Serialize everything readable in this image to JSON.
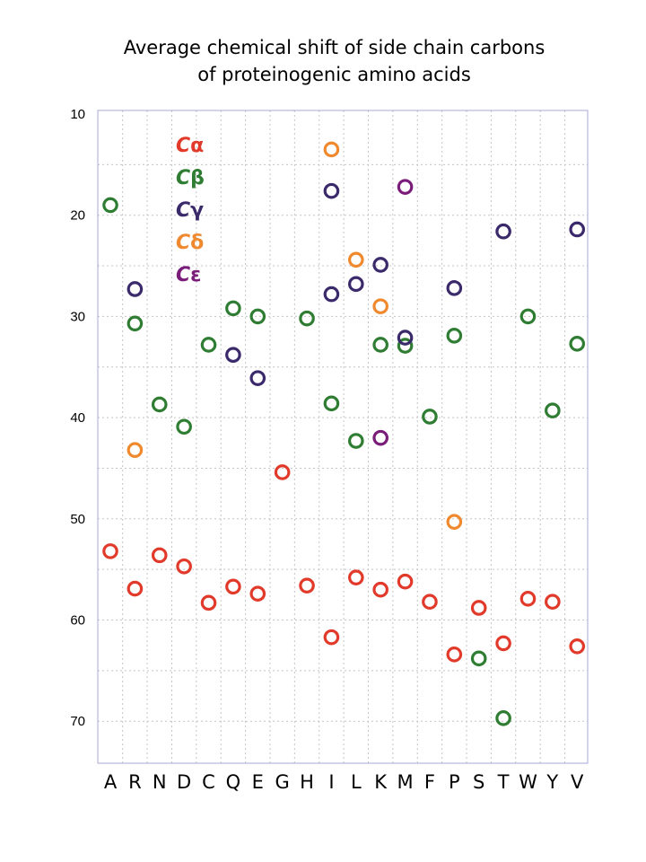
{
  "chart_data": {
    "type": "scatter",
    "title_lines": [
      "Average chemical shift of side chain carbons",
      "of proteinogenic amino acids"
    ],
    "xlabel": "",
    "ylabel": "",
    "y_inverted": true,
    "ylim": [
      10,
      75
    ],
    "y_ticks": [
      10,
      20,
      30,
      40,
      50,
      60,
      70
    ],
    "grid": true,
    "legend_position": "top-left",
    "categories": [
      "A",
      "R",
      "N",
      "D",
      "C",
      "Q",
      "E",
      "G",
      "H",
      "I",
      "L",
      "K",
      "M",
      "F",
      "P",
      "S",
      "T",
      "W",
      "Y",
      "V"
    ],
    "series": [
      {
        "name": "Cα",
        "color": "#e23a2a",
        "points": [
          {
            "x": "A",
            "y": 53.2
          },
          {
            "x": "R",
            "y": 56.9
          },
          {
            "x": "N",
            "y": 53.6
          },
          {
            "x": "D",
            "y": 54.7
          },
          {
            "x": "C",
            "y": 58.3
          },
          {
            "x": "Q",
            "y": 56.7
          },
          {
            "x": "E",
            "y": 57.4
          },
          {
            "x": "G",
            "y": 45.4
          },
          {
            "x": "H",
            "y": 56.6
          },
          {
            "x": "I",
            "y": 61.7
          },
          {
            "x": "L",
            "y": 55.8
          },
          {
            "x": "K",
            "y": 57.0
          },
          {
            "x": "M",
            "y": 56.2
          },
          {
            "x": "F",
            "y": 58.2
          },
          {
            "x": "P",
            "y": 63.4
          },
          {
            "x": "S",
            "y": 58.8
          },
          {
            "x": "T",
            "y": 62.3
          },
          {
            "x": "W",
            "y": 57.9
          },
          {
            "x": "Y",
            "y": 58.2
          },
          {
            "x": "V",
            "y": 62.6
          }
        ]
      },
      {
        "name": "Cβ",
        "color": "#2e7d32",
        "points": [
          {
            "x": "A",
            "y": 19.0
          },
          {
            "x": "R",
            "y": 30.7
          },
          {
            "x": "N",
            "y": 38.7
          },
          {
            "x": "D",
            "y": 40.9
          },
          {
            "x": "C",
            "y": 32.8
          },
          {
            "x": "Q",
            "y": 29.2
          },
          {
            "x": "E",
            "y": 30.0
          },
          {
            "x": "H",
            "y": 30.2
          },
          {
            "x": "I",
            "y": 38.6
          },
          {
            "x": "L",
            "y": 42.3
          },
          {
            "x": "K",
            "y": 32.8
          },
          {
            "x": "M",
            "y": 32.9
          },
          {
            "x": "F",
            "y": 39.9
          },
          {
            "x": "P",
            "y": 31.9
          },
          {
            "x": "S",
            "y": 63.8
          },
          {
            "x": "T",
            "y": 69.7
          },
          {
            "x": "W",
            "y": 30.0
          },
          {
            "x": "Y",
            "y": 39.3
          },
          {
            "x": "V",
            "y": 32.7
          }
        ]
      },
      {
        "name": "Cγ",
        "color": "#3b2a6b",
        "points": [
          {
            "x": "R",
            "y": 27.3
          },
          {
            "x": "Q",
            "y": 33.8
          },
          {
            "x": "E",
            "y": 36.1
          },
          {
            "x": "I",
            "y": 17.6
          },
          {
            "x": "I",
            "y": 27.8
          },
          {
            "x": "L",
            "y": 26.8
          },
          {
            "x": "K",
            "y": 24.9
          },
          {
            "x": "M",
            "y": 32.1
          },
          {
            "x": "P",
            "y": 27.2
          },
          {
            "x": "T",
            "y": 21.6
          },
          {
            "x": "V",
            "y": 21.4
          }
        ]
      },
      {
        "name": "Cδ",
        "color": "#f0892e",
        "points": [
          {
            "x": "R",
            "y": 43.2
          },
          {
            "x": "I",
            "y": 13.5
          },
          {
            "x": "L",
            "y": 24.4
          },
          {
            "x": "K",
            "y": 29.0
          },
          {
            "x": "P",
            "y": 50.3
          }
        ]
      },
      {
        "name": "Cε",
        "color": "#7a1c7a",
        "points": [
          {
            "x": "K",
            "y": 42.0
          },
          {
            "x": "M",
            "y": 17.2
          }
        ]
      }
    ],
    "legend": [
      {
        "letter": "C",
        "greek": "α",
        "color": "#e23a2a"
      },
      {
        "letter": "C",
        "greek": "β",
        "color": "#2e7d32"
      },
      {
        "letter": "C",
        "greek": "γ",
        "color": "#3b2a6b"
      },
      {
        "letter": "C",
        "greek": "δ",
        "color": "#f0892e"
      },
      {
        "letter": "C",
        "greek": "ε",
        "color": "#7a1c7a"
      }
    ]
  }
}
